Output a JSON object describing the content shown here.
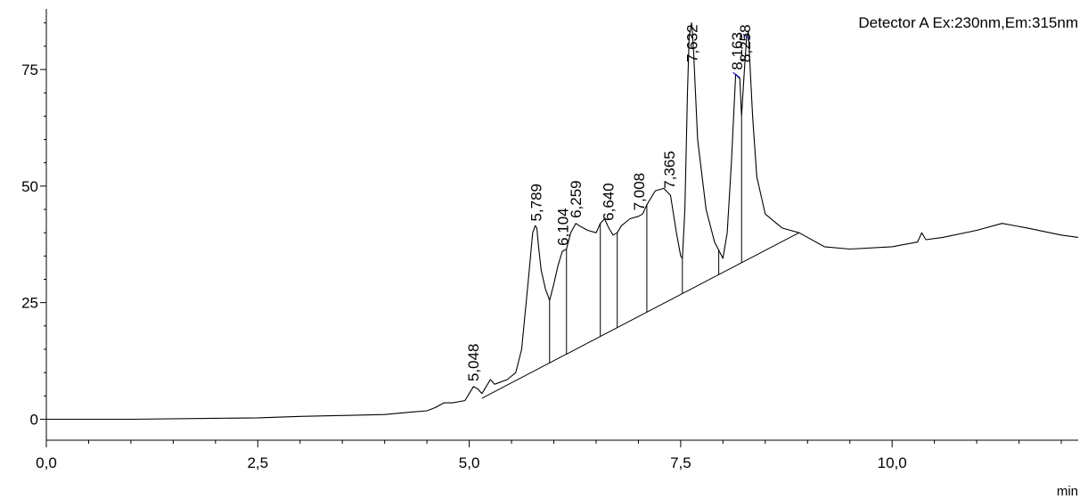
{
  "colors": {
    "trace": "#000000",
    "axis": "#000000",
    "baseline": "#000000",
    "drop_lines": "#000000",
    "integration_marks": "#0000cc",
    "background": "#ffffff"
  },
  "chart_data": {
    "type": "line",
    "title": "",
    "xlabel": "min",
    "ylabel": "",
    "xlim": [
      0,
      12.2
    ],
    "ylim": [
      -4.5,
      88
    ],
    "x_ticks": [
      {
        "value": 0,
        "label": "0,0"
      },
      {
        "value": 2.5,
        "label": "2,5"
      },
      {
        "value": 5,
        "label": "5,0"
      },
      {
        "value": 7.5,
        "label": "7,5"
      },
      {
        "value": 10,
        "label": "10,0"
      }
    ],
    "y_ticks": [
      {
        "value": 0,
        "label": "0"
      },
      {
        "value": 25,
        "label": "25"
      },
      {
        "value": 50,
        "label": "50"
      },
      {
        "value": 75,
        "label": "75"
      }
    ],
    "grid": false,
    "legend": "none",
    "annotations": [
      {
        "text": "Detector A Ex:230nm,Em:315nm",
        "position": "top-right"
      }
    ],
    "series": [
      {
        "name": "Detector A Ex:230nm,Em:315nm",
        "x": [
          0.0,
          1.0,
          2.0,
          2.5,
          3.0,
          3.5,
          4.0,
          4.3,
          4.5,
          4.6,
          4.7,
          4.8,
          4.95,
          5.0,
          5.05,
          5.1,
          5.15,
          5.2,
          5.25,
          5.3,
          5.45,
          5.55,
          5.62,
          5.7,
          5.75,
          5.78,
          5.8,
          5.82,
          5.85,
          5.9,
          5.95,
          6.0,
          6.05,
          6.1,
          6.15,
          6.2,
          6.26,
          6.3,
          6.4,
          6.5,
          6.55,
          6.6,
          6.65,
          6.7,
          6.75,
          6.8,
          6.9,
          7.0,
          7.05,
          7.1,
          7.2,
          7.3,
          7.38,
          7.45,
          7.5,
          7.52,
          7.55,
          7.58,
          7.6,
          7.63,
          7.65,
          7.7,
          7.8,
          7.9,
          8.0,
          8.05,
          8.1,
          8.15,
          8.2,
          8.22,
          8.25,
          8.28,
          8.3,
          8.35,
          8.4,
          8.5,
          8.7,
          8.9,
          9.2,
          9.5,
          10.0,
          10.3,
          10.35,
          10.4,
          10.6,
          11.0,
          11.3,
          11.6,
          12.0,
          12.2
        ],
        "values": [
          0.0,
          0.0,
          0.2,
          0.3,
          0.6,
          0.8,
          1.0,
          1.5,
          1.8,
          2.5,
          3.5,
          3.5,
          4.0,
          5.5,
          7.0,
          6.5,
          5.5,
          7.0,
          8.5,
          7.5,
          8.5,
          10.0,
          15.0,
          30.0,
          40.0,
          41.5,
          41.0,
          37.0,
          32.0,
          28.0,
          25.5,
          29.0,
          33.0,
          36.0,
          36.5,
          40.0,
          42.0,
          41.5,
          40.5,
          40.0,
          42.0,
          43.0,
          41.0,
          39.5,
          40.0,
          41.5,
          43.0,
          43.5,
          44.0,
          46.0,
          49.0,
          49.5,
          48.0,
          40.0,
          35.0,
          34.5,
          45.0,
          70.0,
          82.0,
          85.0,
          80.0,
          60.0,
          45.0,
          38.0,
          34.5,
          40.0,
          55.0,
          74.0,
          73.0,
          65.0,
          74.0,
          82.0,
          83.0,
          65.0,
          52.0,
          44.0,
          41.0,
          40.0,
          37.0,
          36.5,
          37.0,
          38.0,
          40.0,
          38.5,
          39.0,
          40.5,
          42.0,
          41.0,
          39.5,
          39.0
        ]
      }
    ],
    "baseline": {
      "name": "integration baseline",
      "x": [
        5.15,
        8.9
      ],
      "y": [
        4.5,
        40.0
      ]
    },
    "peaks": [
      {
        "label": "5,048",
        "rt": 5.048,
        "drop_line": false
      },
      {
        "label": "5,789",
        "rt": 5.789,
        "drop_line": true,
        "drop_x": 5.95
      },
      {
        "label": "6,104",
        "rt": 6.104,
        "drop_line": true,
        "drop_x": 6.15
      },
      {
        "label": "6,259",
        "rt": 6.259,
        "drop_line": true,
        "drop_x": 6.55
      },
      {
        "label": "6,640",
        "rt": 6.64,
        "drop_line": true,
        "drop_x": 6.75
      },
      {
        "label": "7,008",
        "rt": 7.008,
        "drop_line": true,
        "drop_x": 7.1
      },
      {
        "label": "7,365",
        "rt": 7.365,
        "drop_line": true,
        "drop_x": 7.52
      },
      {
        "label": "7,632",
        "rt": 7.632,
        "drop_line": true,
        "drop_x": 7.95
      },
      {
        "label": "8,163",
        "rt": 8.163,
        "drop_line": true,
        "drop_x": 8.22
      },
      {
        "label": "8,258",
        "rt": 8.258,
        "drop_line": false
      }
    ]
  }
}
